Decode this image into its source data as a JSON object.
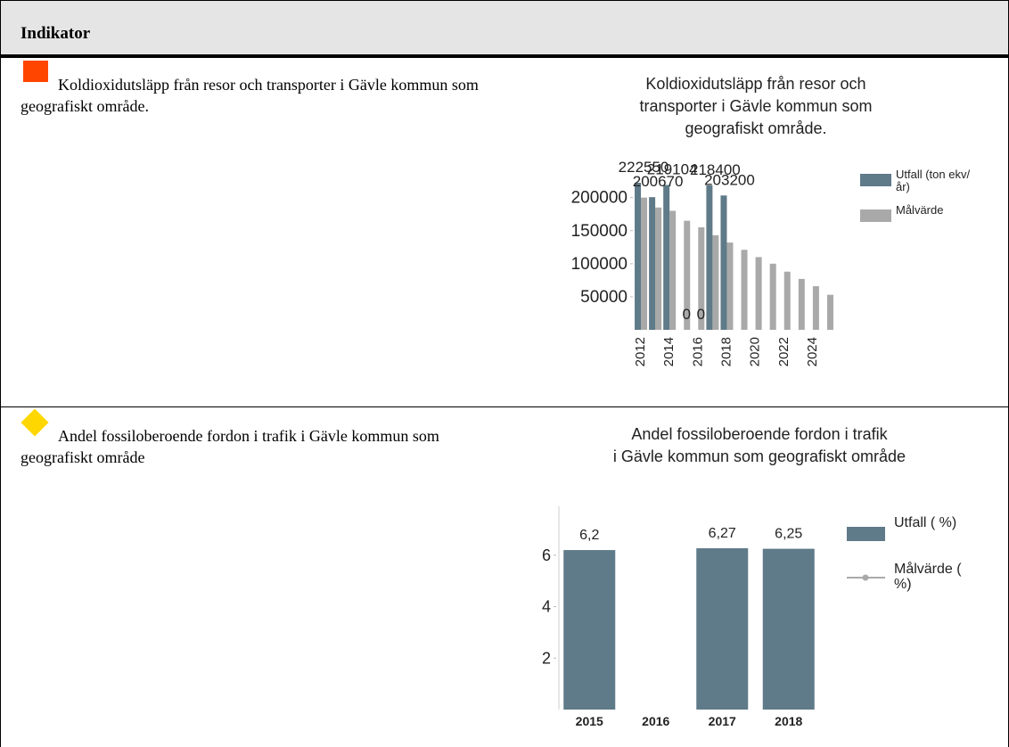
{
  "header": {
    "title": "Indikator"
  },
  "rows": [
    {
      "text": "Koldioxidutsläpp från resor och transporter i Gävle kommun som geografiskt område."
    },
    {
      "text": "Andel fossiloberoende fordon i trafik i Gävle kommun som geografiskt område"
    }
  ],
  "chart_data": [
    {
      "type": "bar",
      "title": "Koldioxidutsläpp från resor och transporter i Gävle kommun som geografiskt område.",
      "categories": [
        "2012",
        null,
        "2014",
        null,
        "2016",
        null,
        "2018",
        null,
        "2020",
        null,
        "2022",
        null,
        "2024",
        null
      ],
      "series": [
        {
          "name": "Utfall (ton ekv/år)",
          "color": "#5f7a88",
          "values": [
            222550,
            200670,
            219104,
            0,
            0,
            218400,
            203200,
            null,
            null,
            null,
            null,
            null,
            null,
            null
          ]
        },
        {
          "name": "Målvärde",
          "color": "#a9a9a9",
          "values": [
            200000,
            185000,
            180000,
            165000,
            155000,
            143000,
            132000,
            121000,
            110000,
            100000,
            88000,
            77000,
            66000,
            53000
          ]
        }
      ],
      "ylim": [
        0,
        240000
      ],
      "yticks": [
        50000,
        100000,
        150000,
        200000
      ]
    },
    {
      "type": "bar",
      "title": "Andel fossiloberoende fordon i trafik i Gävle kommun som geografiskt område",
      "categories": [
        "2015",
        "2016",
        "2017",
        "2018"
      ],
      "series": [
        {
          "name": "Utfall ( %)",
          "color": "#5f7a88",
          "values": [
            6.2,
            null,
            6.27,
            6.25
          ],
          "value_labels": [
            "6,2",
            null,
            "6,27",
            "6,25"
          ]
        },
        {
          "name": "Målvärde ( %)",
          "color": "#a9a9a9",
          "type": "line",
          "values": [
            null,
            null,
            null,
            null
          ]
        }
      ],
      "ylim": [
        0,
        7.9
      ],
      "yticks": [
        2,
        4,
        6
      ]
    }
  ]
}
